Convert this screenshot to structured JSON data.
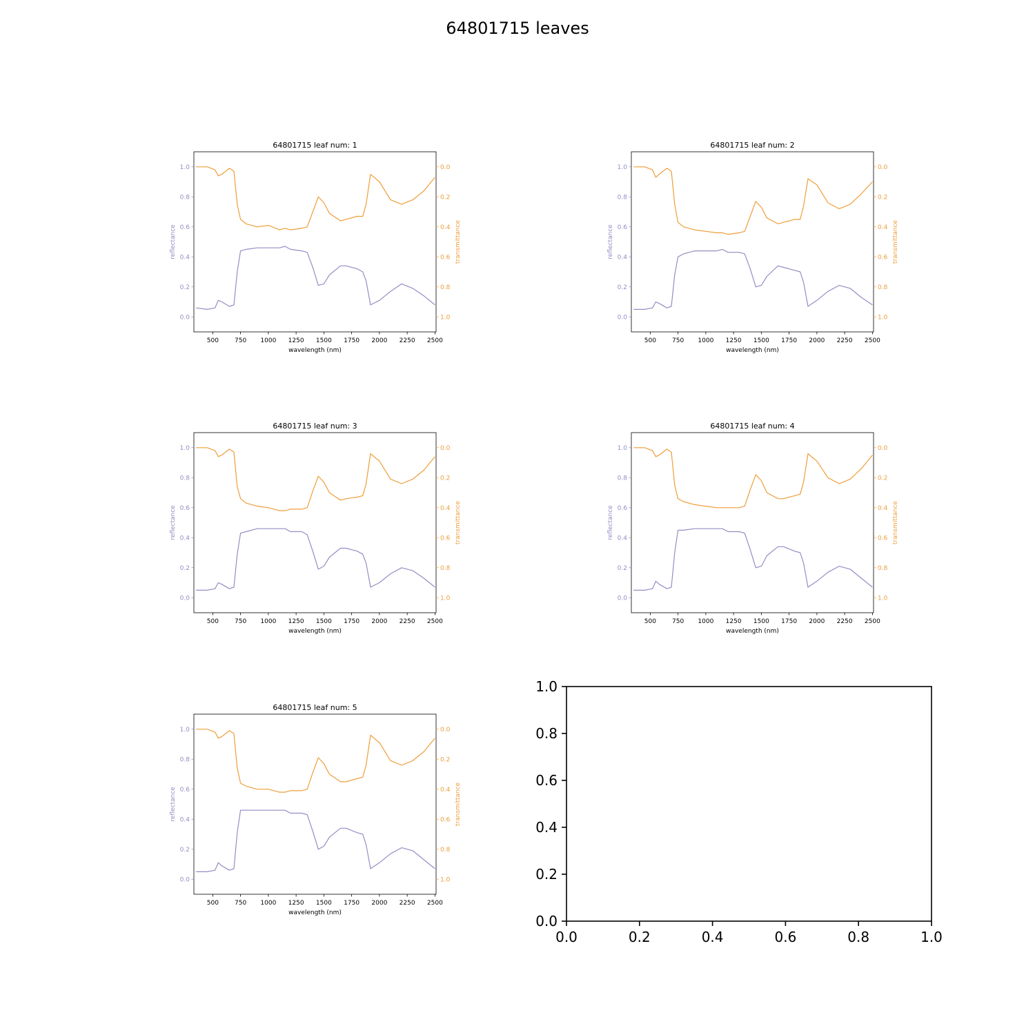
{
  "figure": {
    "suptitle": "64801715 leaves"
  },
  "colors": {
    "reflectance": "#928dc4",
    "transmittance": "#ee9d38",
    "axes": "#000000"
  },
  "chart_data": [
    {
      "type": "line",
      "title": "64801715 leaf num: 1",
      "xlabel": "wavelength (nm)",
      "ylabel_left": "reflectance",
      "ylabel_right": "transmittance",
      "xlim": [
        330,
        2510
      ],
      "ylim_left": [
        -0.1,
        1.1
      ],
      "ylim_right": [
        1.1,
        -0.1
      ],
      "right_axis_inverted": true,
      "xticks": [
        500,
        750,
        1000,
        1250,
        1500,
        1750,
        2000,
        2250,
        2500
      ],
      "yticks_left": [
        "0.0",
        "0.2",
        "0.4",
        "0.6",
        "0.8",
        "1.0"
      ],
      "yticks_right": [
        "0.0",
        "0.2",
        "0.4",
        "0.6",
        "0.8",
        "1.0"
      ],
      "series": [
        {
          "name": "reflectance",
          "axis": "left",
          "x": [
            350,
            450,
            520,
            550,
            580,
            650,
            690,
            720,
            750,
            800,
            900,
            1000,
            1100,
            1150,
            1200,
            1300,
            1350,
            1400,
            1450,
            1500,
            1550,
            1650,
            1700,
            1800,
            1850,
            1880,
            1920,
            2000,
            2100,
            2200,
            2300,
            2400,
            2500
          ],
          "y": [
            0.06,
            0.05,
            0.06,
            0.11,
            0.1,
            0.07,
            0.08,
            0.3,
            0.44,
            0.45,
            0.46,
            0.46,
            0.46,
            0.47,
            0.45,
            0.44,
            0.43,
            0.33,
            0.21,
            0.22,
            0.28,
            0.34,
            0.34,
            0.32,
            0.3,
            0.24,
            0.08,
            0.11,
            0.17,
            0.22,
            0.19,
            0.14,
            0.08
          ]
        },
        {
          "name": "transmittance",
          "axis": "right",
          "x": [
            350,
            450,
            520,
            550,
            580,
            650,
            690,
            720,
            750,
            800,
            900,
            1000,
            1100,
            1150,
            1200,
            1300,
            1350,
            1400,
            1450,
            1500,
            1550,
            1650,
            1700,
            1800,
            1850,
            1880,
            1920,
            2000,
            2100,
            2200,
            2300,
            2400,
            2500
          ],
          "y": [
            0.0,
            0.0,
            0.02,
            0.06,
            0.05,
            0.01,
            0.03,
            0.25,
            0.35,
            0.38,
            0.4,
            0.39,
            0.42,
            0.41,
            0.42,
            0.41,
            0.4,
            0.3,
            0.2,
            0.24,
            0.31,
            0.36,
            0.35,
            0.33,
            0.33,
            0.25,
            0.05,
            0.1,
            0.22,
            0.25,
            0.22,
            0.16,
            0.07
          ]
        }
      ]
    },
    {
      "type": "line",
      "title": "64801715 leaf num: 2",
      "xlabel": "wavelength (nm)",
      "ylabel_left": "reflectance",
      "ylabel_right": "transmittance",
      "xlim": [
        330,
        2510
      ],
      "ylim_left": [
        -0.1,
        1.1
      ],
      "ylim_right": [
        1.1,
        -0.1
      ],
      "right_axis_inverted": true,
      "xticks": [
        500,
        750,
        1000,
        1250,
        1500,
        1750,
        2000,
        2250,
        2500
      ],
      "yticks_left": [
        "0.0",
        "0.2",
        "0.4",
        "0.6",
        "0.8",
        "1.0"
      ],
      "yticks_right": [
        "0.0",
        "0.2",
        "0.4",
        "0.6",
        "0.8",
        "1.0"
      ],
      "series": [
        {
          "name": "reflectance",
          "axis": "left",
          "x": [
            350,
            450,
            520,
            550,
            580,
            650,
            690,
            720,
            750,
            800,
            900,
            1000,
            1100,
            1150,
            1200,
            1300,
            1350,
            1400,
            1450,
            1500,
            1550,
            1650,
            1700,
            1800,
            1850,
            1880,
            1920,
            2000,
            2100,
            2200,
            2300,
            2400,
            2500
          ],
          "y": [
            0.05,
            0.05,
            0.06,
            0.1,
            0.09,
            0.06,
            0.07,
            0.28,
            0.4,
            0.42,
            0.44,
            0.44,
            0.44,
            0.45,
            0.43,
            0.43,
            0.42,
            0.32,
            0.2,
            0.21,
            0.27,
            0.34,
            0.33,
            0.31,
            0.3,
            0.23,
            0.07,
            0.11,
            0.17,
            0.21,
            0.19,
            0.13,
            0.08
          ]
        },
        {
          "name": "transmittance",
          "axis": "right",
          "x": [
            350,
            450,
            520,
            550,
            580,
            650,
            690,
            720,
            750,
            800,
            900,
            1000,
            1100,
            1150,
            1200,
            1300,
            1350,
            1400,
            1450,
            1500,
            1550,
            1650,
            1700,
            1800,
            1850,
            1880,
            1920,
            2000,
            2100,
            2200,
            2300,
            2400,
            2500
          ],
          "y": [
            0.0,
            0.0,
            0.02,
            0.07,
            0.05,
            0.01,
            0.03,
            0.25,
            0.37,
            0.4,
            0.42,
            0.43,
            0.44,
            0.44,
            0.45,
            0.44,
            0.43,
            0.33,
            0.23,
            0.27,
            0.34,
            0.38,
            0.37,
            0.35,
            0.35,
            0.26,
            0.08,
            0.12,
            0.24,
            0.28,
            0.25,
            0.18,
            0.1
          ]
        }
      ]
    },
    {
      "type": "line",
      "title": "64801715 leaf num: 3",
      "xlabel": "wavelength (nm)",
      "ylabel_left": "reflectance",
      "ylabel_right": "transmittance",
      "xlim": [
        330,
        2510
      ],
      "ylim_left": [
        -0.1,
        1.1
      ],
      "ylim_right": [
        1.1,
        -0.1
      ],
      "right_axis_inverted": true,
      "xticks": [
        500,
        750,
        1000,
        1250,
        1500,
        1750,
        2000,
        2250,
        2500
      ],
      "yticks_left": [
        "0.0",
        "0.2",
        "0.4",
        "0.6",
        "0.8",
        "1.0"
      ],
      "yticks_right": [
        "0.0",
        "0.2",
        "0.4",
        "0.6",
        "0.8",
        "1.0"
      ],
      "series": [
        {
          "name": "reflectance",
          "axis": "left",
          "x": [
            350,
            450,
            520,
            550,
            580,
            650,
            690,
            720,
            750,
            800,
            900,
            1000,
            1100,
            1150,
            1200,
            1300,
            1350,
            1400,
            1450,
            1500,
            1550,
            1650,
            1700,
            1800,
            1850,
            1880,
            1920,
            2000,
            2100,
            2200,
            2300,
            2400,
            2500
          ],
          "y": [
            0.05,
            0.05,
            0.06,
            0.1,
            0.09,
            0.06,
            0.07,
            0.29,
            0.43,
            0.44,
            0.46,
            0.46,
            0.46,
            0.46,
            0.44,
            0.44,
            0.42,
            0.31,
            0.19,
            0.21,
            0.27,
            0.33,
            0.33,
            0.31,
            0.29,
            0.23,
            0.07,
            0.1,
            0.16,
            0.2,
            0.18,
            0.13,
            0.07
          ]
        },
        {
          "name": "transmittance",
          "axis": "right",
          "x": [
            350,
            450,
            520,
            550,
            580,
            650,
            690,
            720,
            750,
            800,
            900,
            1000,
            1100,
            1150,
            1200,
            1300,
            1350,
            1400,
            1450,
            1500,
            1550,
            1650,
            1700,
            1800,
            1850,
            1880,
            1920,
            2000,
            2100,
            2200,
            2300,
            2400,
            2500
          ],
          "y": [
            0.0,
            0.0,
            0.02,
            0.06,
            0.05,
            0.01,
            0.03,
            0.26,
            0.34,
            0.37,
            0.39,
            0.4,
            0.42,
            0.42,
            0.41,
            0.41,
            0.4,
            0.29,
            0.19,
            0.23,
            0.3,
            0.35,
            0.34,
            0.33,
            0.32,
            0.24,
            0.04,
            0.09,
            0.21,
            0.24,
            0.21,
            0.15,
            0.06
          ]
        }
      ]
    },
    {
      "type": "line",
      "title": "64801715 leaf num: 4",
      "xlabel": "wavelength (nm)",
      "ylabel_left": "reflectance",
      "ylabel_right": "transmittance",
      "xlim": [
        330,
        2510
      ],
      "ylim_left": [
        -0.1,
        1.1
      ],
      "ylim_right": [
        1.1,
        -0.1
      ],
      "right_axis_inverted": true,
      "xticks": [
        500,
        750,
        1000,
        1250,
        1500,
        1750,
        2000,
        2250,
        2500
      ],
      "yticks_left": [
        "0.0",
        "0.2",
        "0.4",
        "0.6",
        "0.8",
        "1.0"
      ],
      "yticks_right": [
        "0.0",
        "0.2",
        "0.4",
        "0.6",
        "0.8",
        "1.0"
      ],
      "series": [
        {
          "name": "reflectance",
          "axis": "left",
          "x": [
            350,
            450,
            520,
            550,
            580,
            650,
            690,
            720,
            750,
            800,
            900,
            1000,
            1100,
            1150,
            1200,
            1300,
            1350,
            1400,
            1450,
            1500,
            1550,
            1650,
            1700,
            1800,
            1850,
            1880,
            1920,
            2000,
            2100,
            2200,
            2300,
            2400,
            2500
          ],
          "y": [
            0.05,
            0.05,
            0.06,
            0.11,
            0.09,
            0.06,
            0.07,
            0.3,
            0.45,
            0.45,
            0.46,
            0.46,
            0.46,
            0.46,
            0.44,
            0.44,
            0.43,
            0.32,
            0.2,
            0.21,
            0.28,
            0.34,
            0.34,
            0.31,
            0.3,
            0.23,
            0.07,
            0.11,
            0.17,
            0.21,
            0.19,
            0.13,
            0.07
          ]
        },
        {
          "name": "transmittance",
          "axis": "right",
          "x": [
            350,
            450,
            520,
            550,
            580,
            650,
            690,
            720,
            750,
            800,
            900,
            1000,
            1100,
            1150,
            1200,
            1300,
            1350,
            1400,
            1450,
            1500,
            1550,
            1650,
            1700,
            1800,
            1850,
            1880,
            1920,
            2000,
            2100,
            2200,
            2300,
            2400,
            2500
          ],
          "y": [
            0.0,
            0.0,
            0.02,
            0.06,
            0.05,
            0.01,
            0.03,
            0.25,
            0.34,
            0.36,
            0.38,
            0.39,
            0.4,
            0.4,
            0.4,
            0.4,
            0.39,
            0.28,
            0.18,
            0.22,
            0.3,
            0.34,
            0.34,
            0.32,
            0.31,
            0.23,
            0.04,
            0.09,
            0.2,
            0.24,
            0.21,
            0.14,
            0.05
          ]
        }
      ]
    },
    {
      "type": "line",
      "title": "64801715 leaf num: 5",
      "xlabel": "wavelength (nm)",
      "ylabel_left": "reflectance",
      "ylabel_right": "transmittance",
      "xlim": [
        330,
        2510
      ],
      "ylim_left": [
        -0.1,
        1.1
      ],
      "ylim_right": [
        1.1,
        -0.1
      ],
      "right_axis_inverted": true,
      "xticks": [
        500,
        750,
        1000,
        1250,
        1500,
        1750,
        2000,
        2250,
        2500
      ],
      "yticks_left": [
        "0.0",
        "0.2",
        "0.4",
        "0.6",
        "0.8",
        "1.0"
      ],
      "yticks_right": [
        "0.0",
        "0.2",
        "0.4",
        "0.6",
        "0.8",
        "1.0"
      ],
      "series": [
        {
          "name": "reflectance",
          "axis": "left",
          "x": [
            350,
            450,
            520,
            550,
            580,
            650,
            690,
            720,
            750,
            800,
            900,
            1000,
            1100,
            1150,
            1200,
            1300,
            1350,
            1400,
            1450,
            1500,
            1550,
            1650,
            1700,
            1800,
            1850,
            1880,
            1920,
            2000,
            2100,
            2200,
            2300,
            2400,
            2500
          ],
          "y": [
            0.05,
            0.05,
            0.06,
            0.11,
            0.09,
            0.06,
            0.07,
            0.31,
            0.46,
            0.46,
            0.46,
            0.46,
            0.46,
            0.46,
            0.44,
            0.44,
            0.43,
            0.32,
            0.2,
            0.22,
            0.28,
            0.34,
            0.34,
            0.31,
            0.3,
            0.23,
            0.07,
            0.11,
            0.17,
            0.21,
            0.19,
            0.13,
            0.07
          ]
        },
        {
          "name": "transmittance",
          "axis": "right",
          "x": [
            350,
            450,
            520,
            550,
            580,
            650,
            690,
            720,
            750,
            800,
            900,
            1000,
            1100,
            1150,
            1200,
            1300,
            1350,
            1400,
            1450,
            1500,
            1550,
            1650,
            1700,
            1800,
            1850,
            1880,
            1920,
            2000,
            2100,
            2200,
            2300,
            2400,
            2500
          ],
          "y": [
            0.0,
            0.0,
            0.02,
            0.06,
            0.05,
            0.01,
            0.03,
            0.26,
            0.36,
            0.38,
            0.4,
            0.4,
            0.42,
            0.42,
            0.41,
            0.41,
            0.4,
            0.29,
            0.19,
            0.23,
            0.3,
            0.35,
            0.35,
            0.33,
            0.32,
            0.24,
            0.04,
            0.09,
            0.21,
            0.24,
            0.21,
            0.15,
            0.06
          ]
        }
      ]
    },
    {
      "type": "line",
      "title": "",
      "xlim": [
        0.0,
        1.0
      ],
      "ylim": [
        0.0,
        1.0
      ],
      "xticks": [
        "0.0",
        "0.2",
        "0.4",
        "0.6",
        "0.8",
        "1.0"
      ],
      "yticks": [
        "0.0",
        "0.2",
        "0.4",
        "0.6",
        "0.8",
        "1.0"
      ],
      "series": []
    }
  ]
}
